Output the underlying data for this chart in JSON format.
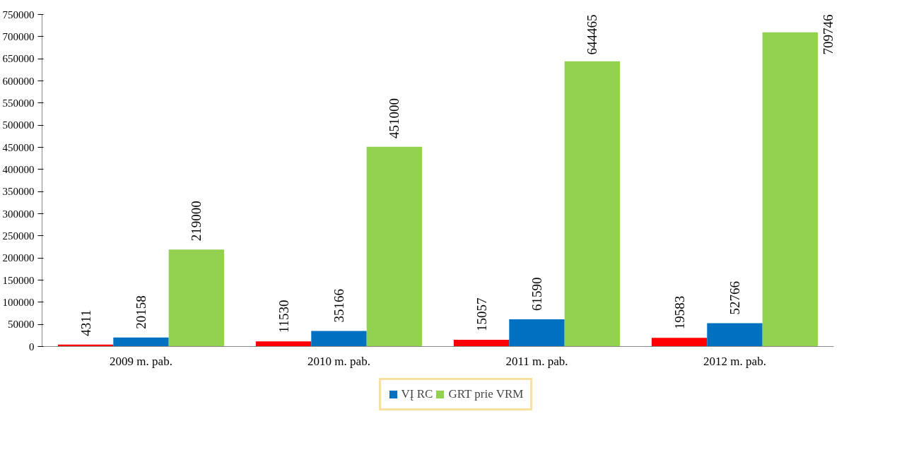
{
  "chart_data": {
    "type": "bar",
    "categories": [
      "2009 m. pab.",
      "2010 m. pab.",
      "2011 m. pab.",
      "2012 m. pab."
    ],
    "series": [
      {
        "color": "#ff0000",
        "values": [
          4311,
          11530,
          15057,
          19583
        ]
      },
      {
        "name": "VĮ RC",
        "color": "#0070c0",
        "values": [
          20158,
          35166,
          61590,
          52766
        ]
      },
      {
        "name": "GRT prie VRM",
        "color": "#92d050",
        "values": [
          219000,
          451000,
          644465,
          709746
        ]
      }
    ],
    "ylim": [
      0,
      750000
    ],
    "yticks": [
      0,
      50000,
      100000,
      150000,
      200000,
      250000,
      300000,
      350000,
      400000,
      450000,
      500000,
      550000,
      600000,
      650000,
      700000,
      750000
    ],
    "data_labels": true,
    "grid": false,
    "legend": "bottom"
  }
}
